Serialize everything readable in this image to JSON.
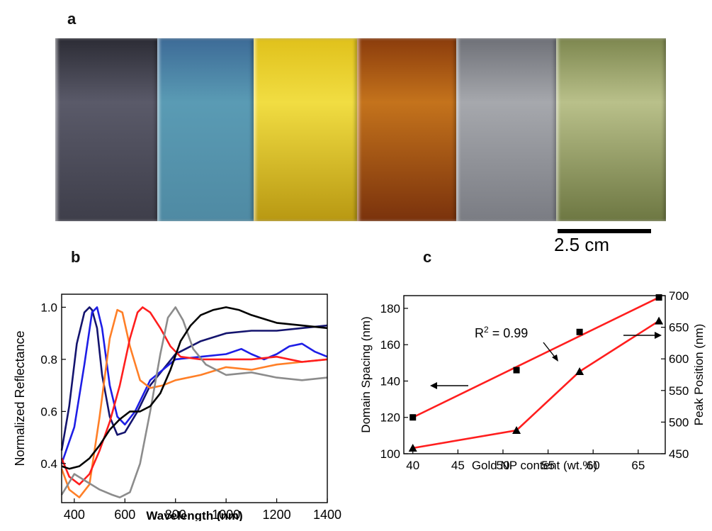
{
  "panels": {
    "a": "a",
    "b": "b",
    "c": "c"
  },
  "photo": {
    "samples": [
      {
        "name": "black",
        "colors": [
          "#2c2c35",
          "#5a5a69",
          "#3e3e4a"
        ]
      },
      {
        "name": "blue",
        "colors": [
          "#3d6b97",
          "#5a9bb4",
          "#4f8aa3"
        ]
      },
      {
        "name": "yellow",
        "colors": [
          "#e0c11b",
          "#f1dd42",
          "#b89812"
        ]
      },
      {
        "name": "brown",
        "colors": [
          "#8b3c0c",
          "#c4731c",
          "#7a320c"
        ]
      },
      {
        "name": "gray",
        "colors": [
          "#6f7178",
          "#a6a8ad",
          "#7a7c83"
        ]
      },
      {
        "name": "green",
        "colors": [
          "#7d874f",
          "#b9c08a",
          "#6d7742"
        ]
      }
    ],
    "scale_label": "2.5 cm"
  },
  "chart_data": [
    {
      "panel": "b",
      "type": "line",
      "xlabel": "Wavelength (nm)",
      "ylabel": "Normalized Reflectance",
      "xlim": [
        350,
        1400
      ],
      "ylim": [
        0.25,
        1.05
      ],
      "xticks": [
        "400",
        "600",
        "800",
        "1000",
        "1200",
        "1400"
      ],
      "yticks": [
        "0.4",
        "0.6",
        "0.8",
        "1.0"
      ],
      "series": [
        {
          "color": "#14146e",
          "x": [
            350,
            380,
            410,
            440,
            460,
            470,
            490,
            510,
            540,
            570,
            600,
            650,
            700,
            800,
            900,
            1000,
            1100,
            1200,
            1300,
            1400
          ],
          "y": [
            0.45,
            0.62,
            0.86,
            0.98,
            1.0,
            0.99,
            0.92,
            0.74,
            0.58,
            0.51,
            0.52,
            0.6,
            0.7,
            0.82,
            0.87,
            0.9,
            0.91,
            0.91,
            0.92,
            0.93
          ]
        },
        {
          "color": "#1e1ee6",
          "x": [
            350,
            400,
            440,
            470,
            490,
            510,
            540,
            570,
            600,
            640,
            700,
            800,
            900,
            1000,
            1060,
            1100,
            1150,
            1200,
            1250,
            1300,
            1350,
            1400
          ],
          "y": [
            0.4,
            0.54,
            0.78,
            0.98,
            1.0,
            0.92,
            0.7,
            0.58,
            0.55,
            0.6,
            0.72,
            0.8,
            0.81,
            0.82,
            0.84,
            0.82,
            0.8,
            0.82,
            0.85,
            0.86,
            0.83,
            0.81
          ]
        },
        {
          "color": "#ff7f27",
          "x": [
            350,
            380,
            420,
            460,
            500,
            540,
            570,
            590,
            620,
            660,
            700,
            750,
            800,
            900,
            1000,
            1100,
            1200,
            1300,
            1400
          ],
          "y": [
            0.38,
            0.3,
            0.27,
            0.32,
            0.58,
            0.88,
            0.99,
            0.98,
            0.85,
            0.72,
            0.69,
            0.7,
            0.72,
            0.74,
            0.77,
            0.76,
            0.78,
            0.79,
            0.8
          ]
        },
        {
          "color": "#ff1e1e",
          "x": [
            350,
            380,
            420,
            460,
            500,
            540,
            580,
            620,
            650,
            670,
            700,
            740,
            780,
            820,
            900,
            1000,
            1100,
            1200,
            1300,
            1400
          ],
          "y": [
            0.42,
            0.35,
            0.32,
            0.36,
            0.45,
            0.56,
            0.7,
            0.88,
            0.98,
            1.0,
            0.98,
            0.92,
            0.85,
            0.81,
            0.8,
            0.8,
            0.8,
            0.81,
            0.79,
            0.8
          ]
        },
        {
          "color": "#8c8c8c",
          "x": [
            350,
            400,
            450,
            500,
            550,
            580,
            620,
            660,
            700,
            740,
            770,
            800,
            830,
            870,
            920,
            1000,
            1100,
            1200,
            1300,
            1400
          ],
          "y": [
            0.28,
            0.36,
            0.33,
            0.3,
            0.28,
            0.27,
            0.29,
            0.4,
            0.6,
            0.82,
            0.96,
            1.0,
            0.95,
            0.84,
            0.78,
            0.74,
            0.75,
            0.73,
            0.72,
            0.73
          ]
        },
        {
          "color": "#000000",
          "x": [
            350,
            380,
            420,
            460,
            500,
            540,
            580,
            620,
            660,
            700,
            740,
            780,
            820,
            860,
            900,
            950,
            1000,
            1050,
            1100,
            1200,
            1300,
            1400
          ],
          "y": [
            0.39,
            0.38,
            0.39,
            0.42,
            0.47,
            0.53,
            0.57,
            0.6,
            0.6,
            0.62,
            0.67,
            0.76,
            0.87,
            0.93,
            0.97,
            0.99,
            1.0,
            0.99,
            0.97,
            0.94,
            0.93,
            0.92
          ]
        }
      ]
    },
    {
      "panel": "c",
      "type": "scatter",
      "xlabel": "Gold NP content (wt.%)",
      "ylabel": "Domain Spacing (nm)",
      "y2label": "Peak Position (nm)",
      "xlim": [
        39,
        68
      ],
      "ylim": [
        100,
        187
      ],
      "y2lim": [
        450,
        700
      ],
      "xticks": [
        "40",
        "45",
        "50",
        "55",
        "60",
        "65"
      ],
      "yticks": [
        "100",
        "120",
        "140",
        "160",
        "180"
      ],
      "y2ticks": [
        "450",
        "500",
        "550",
        "600",
        "650",
        "700"
      ],
      "annotation": "R<sup>2</sup> = 0.99",
      "series": [
        {
          "axis": "left",
          "marker": "square",
          "x": [
            40,
            51.5,
            58.5,
            67.3
          ],
          "y": [
            120,
            146,
            167,
            186
          ],
          "fit": {
            "x": [
              40,
              67.3
            ],
            "y": [
              120,
              186
            ]
          }
        },
        {
          "axis": "right",
          "marker": "triangle",
          "x": [
            40,
            51.5,
            58.5,
            67.3
          ],
          "y": [
            459,
            487,
            580,
            660
          ]
        }
      ]
    }
  ]
}
